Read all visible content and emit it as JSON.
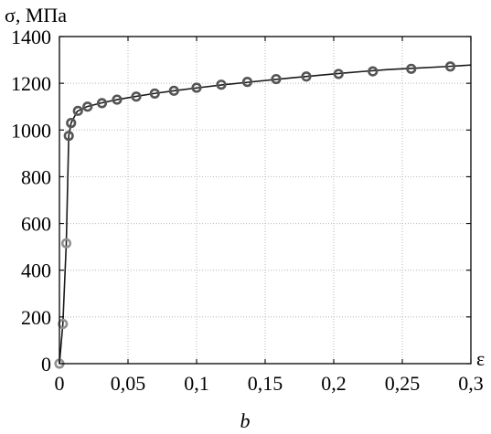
{
  "chart_data": {
    "type": "line",
    "title": "",
    "ylabel": "σ, МПа",
    "xlabel": "ε",
    "caption": "b",
    "xlim": [
      0,
      0.3
    ],
    "ylim": [
      0,
      1400
    ],
    "x_ticks": [
      0,
      0.05,
      0.1,
      0.15,
      0.2,
      0.25,
      0.3
    ],
    "x_tick_labels": [
      "0",
      "0,05",
      "0,1",
      "0,15",
      "0,2",
      "0,25",
      "0,3"
    ],
    "y_ticks": [
      0,
      200,
      400,
      600,
      800,
      1000,
      1200,
      1400
    ],
    "y_tick_labels": [
      "0",
      "200",
      "400",
      "600",
      "800",
      "1000",
      "1200",
      "1400"
    ],
    "grid": true,
    "series": [
      {
        "type": "line",
        "color": "#1a1a1a",
        "x": [
          0,
          0.0025,
          0.005,
          0.0068,
          0.0085,
          0.013,
          0.02,
          0.03,
          0.042,
          0.055,
          0.07,
          0.085,
          0.1,
          0.12,
          0.14,
          0.16,
          0.18,
          0.2,
          0.22,
          0.24,
          0.26,
          0.28,
          0.3
        ],
        "y": [
          0,
          170,
          515,
          975,
          1030,
          1080,
          1100,
          1115,
          1130,
          1143,
          1157,
          1169,
          1180,
          1194,
          1206,
          1218,
          1229,
          1240,
          1250,
          1259,
          1265,
          1271,
          1278
        ]
      },
      {
        "type": "scatter",
        "color": "#909090",
        "x": [
          0,
          0.0025,
          0.005
        ],
        "y": [
          0,
          170,
          515
        ]
      },
      {
        "type": "scatter",
        "color": "#555555",
        "x": [
          0.0068,
          0.0085,
          0.0135,
          0.0205,
          0.031,
          0.042,
          0.056,
          0.0695,
          0.0835,
          0.1,
          0.118,
          0.137,
          0.158,
          0.18,
          0.2035,
          0.2285,
          0.2565,
          0.285
        ],
        "y": [
          975,
          1030,
          1082,
          1100,
          1115,
          1130,
          1143,
          1156,
          1168,
          1181,
          1194,
          1206,
          1218,
          1229,
          1240,
          1251,
          1262,
          1272
        ]
      }
    ]
  }
}
